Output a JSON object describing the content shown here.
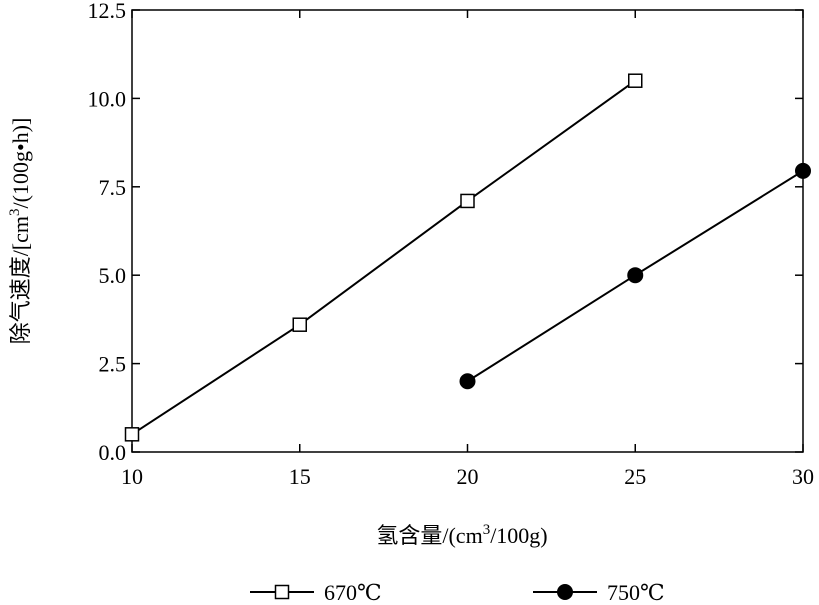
{
  "chart_data": {
    "type": "line",
    "title": "",
    "xlabel": "氢含量/(cm³/100g)",
    "ylabel": "除气速度/[cm³/(100g•h)]",
    "xlim": [
      10,
      30
    ],
    "ylim": [
      0,
      12.5
    ],
    "x_ticks": [
      "10",
      "15",
      "20",
      "25",
      "30"
    ],
    "y_ticks": [
      "0.0",
      "2.5",
      "5.0",
      "7.5",
      "10.0",
      "12.5"
    ],
    "grid": false,
    "legend_position": "bottom",
    "series": [
      {
        "name": "670℃",
        "marker": "open-square",
        "color": "#000000",
        "x": [
          10,
          15,
          20,
          25
        ],
        "y": [
          0.5,
          3.6,
          7.1,
          10.5
        ]
      },
      {
        "name": "750℃",
        "marker": "filled-circle",
        "color": "#000000",
        "x": [
          20,
          25,
          30
        ],
        "y": [
          2.0,
          5.0,
          7.95
        ]
      }
    ]
  }
}
